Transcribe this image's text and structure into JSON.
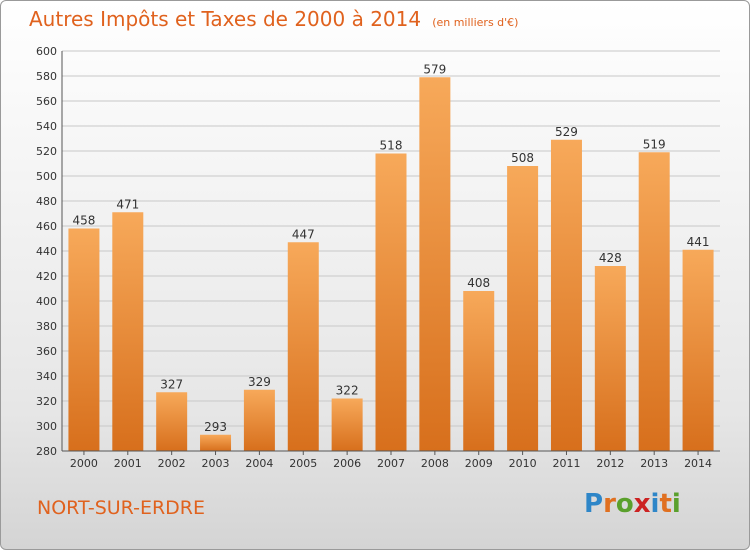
{
  "title": "Autres Impôts et Taxes de 2000 à 2014",
  "unit_note": "(en milliers d'€)",
  "commune": "NORT-SUR-ERDRE",
  "logo": {
    "text": "Proxiti",
    "letter_colors": [
      "#2e86c8",
      "#e07020",
      "#5aa02c",
      "#cc2222",
      "#2e86c8",
      "#e07020",
      "#5aa02c"
    ]
  },
  "colors": {
    "accent": "#e0621e",
    "bar_top": "#f7a95a",
    "bar_bottom": "#d76f1c",
    "grid": "#c8c8c8",
    "axis": "#555555"
  },
  "chart_data": {
    "type": "bar",
    "title": "Autres Impôts et Taxes de 2000 à 2014",
    "xlabel": "",
    "ylabel": "",
    "categories": [
      "2000",
      "2001",
      "2002",
      "2003",
      "2004",
      "2005",
      "2006",
      "2007",
      "2008",
      "2009",
      "2010",
      "2011",
      "2012",
      "2013",
      "2014"
    ],
    "values": [
      458,
      471,
      327,
      293,
      329,
      447,
      322,
      518,
      579,
      408,
      508,
      529,
      428,
      519,
      441
    ],
    "ylim": [
      280,
      600
    ],
    "yticks": [
      280,
      300,
      320,
      340,
      360,
      380,
      400,
      420,
      440,
      460,
      480,
      500,
      520,
      540,
      560,
      580,
      600
    ],
    "grid": true,
    "data_labels": true
  }
}
